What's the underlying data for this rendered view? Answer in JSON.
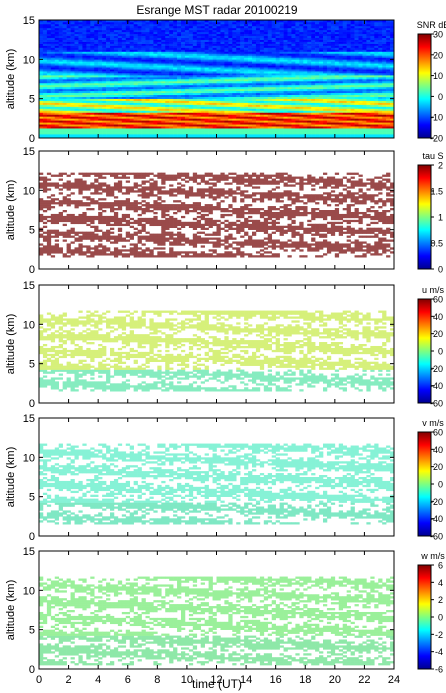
{
  "figure": {
    "title": "Esrange MST radar 20100219",
    "xlabel": "time (UT)",
    "xticks": [
      0,
      2,
      4,
      6,
      8,
      10,
      12,
      14,
      16,
      18,
      20,
      22,
      24
    ]
  },
  "chart_data": [
    {
      "type": "heatmap",
      "title": "Esrange MST radar 20100219",
      "ylabel": "altitude (km)",
      "xlabel": "",
      "xlim": [
        0,
        24
      ],
      "ylim": [
        0,
        15
      ],
      "yticks": [
        0,
        5,
        10,
        15
      ],
      "colorbar": {
        "label": "SNR dB",
        "min": -20,
        "max": 30,
        "ticks": [
          -20,
          -10,
          0,
          10,
          20,
          30
        ]
      }
    },
    {
      "type": "heatmap",
      "ylabel": "altitude (km)",
      "xlim": [
        0,
        24
      ],
      "ylim": [
        0,
        15
      ],
      "yticks": [
        0,
        5,
        10,
        15
      ],
      "colorbar": {
        "label": "tau S",
        "min": 0,
        "max": 2,
        "ticks": [
          0,
          0.5,
          1,
          1.5,
          2
        ]
      }
    },
    {
      "type": "heatmap",
      "ylabel": "altitude (km)",
      "xlim": [
        0,
        24
      ],
      "ylim": [
        0,
        15
      ],
      "yticks": [
        0,
        5,
        10,
        15
      ],
      "colorbar": {
        "label": "u m/s",
        "min": -60,
        "max": 60,
        "ticks": [
          -60,
          -40,
          -20,
          0,
          20,
          40,
          60
        ]
      }
    },
    {
      "type": "heatmap",
      "ylabel": "altitude (km)",
      "xlim": [
        0,
        24
      ],
      "ylim": [
        0,
        15
      ],
      "yticks": [
        0,
        5,
        10,
        15
      ],
      "colorbar": {
        "label": "v m/s",
        "min": -60,
        "max": 60,
        "ticks": [
          -60,
          -40,
          -20,
          0,
          20,
          40,
          60
        ]
      }
    },
    {
      "type": "heatmap",
      "ylabel": "altitude (km)",
      "xlabel": "time (UT)",
      "xlim": [
        0,
        24
      ],
      "ylim": [
        0,
        15
      ],
      "yticks": [
        0,
        5,
        10,
        15
      ],
      "colorbar": {
        "label": "w m/s",
        "min": -6,
        "max": 6,
        "ticks": [
          -6,
          -4,
          -2,
          0,
          2,
          4,
          6
        ]
      }
    }
  ]
}
